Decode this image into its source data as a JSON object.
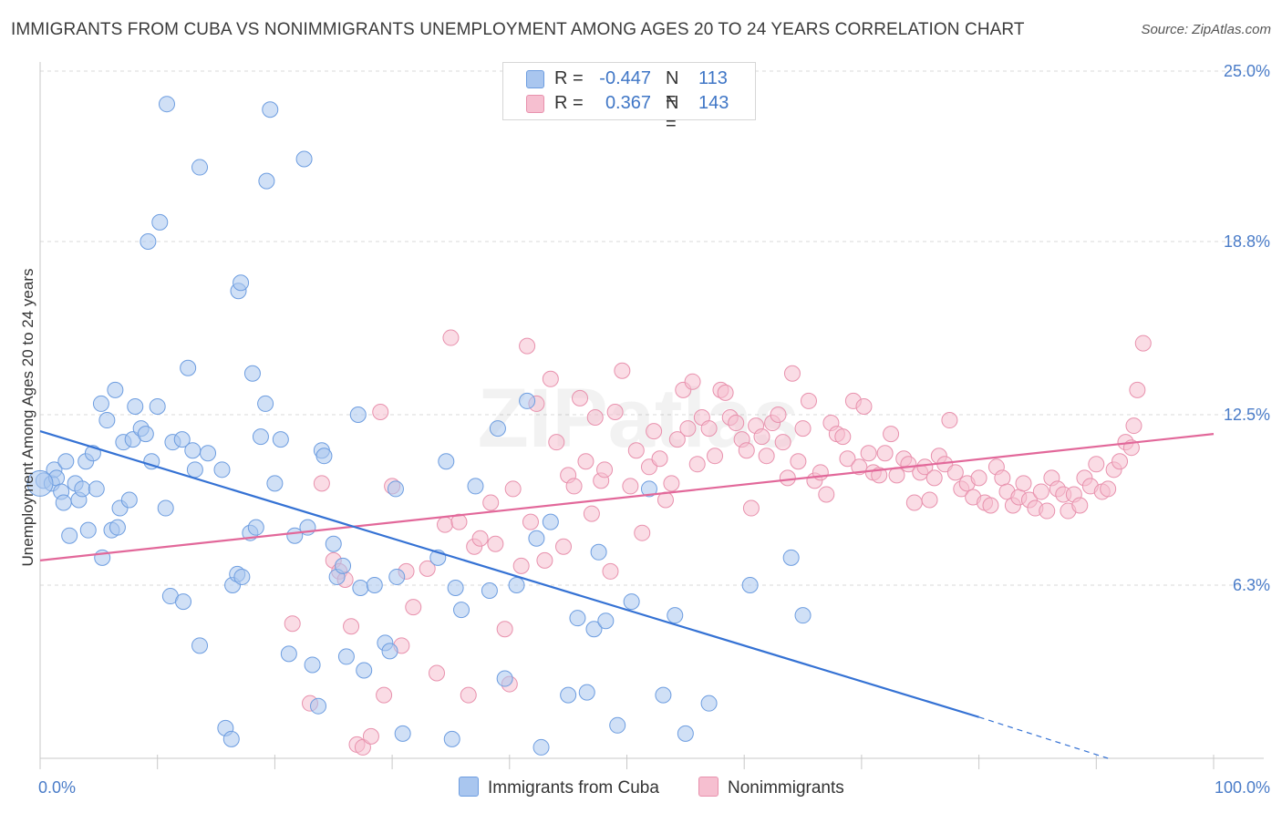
{
  "title": "IMMIGRANTS FROM CUBA VS NONIMMIGRANTS UNEMPLOYMENT AMONG AGES 20 TO 24 YEARS CORRELATION CHART",
  "source": "Source: ZipAtlas.com",
  "watermark": "ZIPatlas",
  "legend": {
    "r_label": "R =",
    "n_label": "N =",
    "series": [
      {
        "r": "-0.447",
        "n": "113"
      },
      {
        "r": "0.367",
        "n": "143"
      }
    ]
  },
  "colors": {
    "blue_fill": "#a9c6ef",
    "blue_stroke": "#6d9de0",
    "blue_line": "#3572d4",
    "pink_fill": "#f6bfd0",
    "pink_stroke": "#e891ad",
    "pink_line": "#e2689a",
    "tick_text": "#4a7cc8"
  },
  "chart_data": {
    "type": "scatter",
    "title": "IMMIGRANTS FROM CUBA VS NONIMMIGRANTS UNEMPLOYMENT AMONG AGES 20 TO 24 YEARS CORRELATION CHART",
    "xlabel": "",
    "ylabel": "Unemployment Among Ages 20 to 24 years",
    "xlim": [
      0,
      100
    ],
    "ylim": [
      0,
      25.0
    ],
    "x_tick_labels": [
      "0.0%",
      "100.0%"
    ],
    "y_ticks": [
      6.3,
      12.5,
      18.8,
      25.0
    ],
    "y_tick_labels": [
      "6.3%",
      "12.5%",
      "18.8%",
      "25.0%"
    ],
    "grid": "horizontal dashed",
    "legend_position": "top-center",
    "series": [
      {
        "name": "Immigrants from Cuba",
        "color": "#a9c6ef",
        "trend": {
          "x0": 0,
          "y0": 11.9,
          "x1": 80,
          "y1": 1.5,
          "dashed_to_x": 91,
          "dashed_to_y": 0.0
        },
        "points": [
          [
            0.3,
            10.1
          ],
          [
            1.0,
            10.0
          ],
          [
            1.2,
            10.5
          ],
          [
            1.4,
            10.2
          ],
          [
            1.8,
            9.7
          ],
          [
            2.0,
            9.3
          ],
          [
            2.2,
            10.8
          ],
          [
            2.5,
            8.1
          ],
          [
            3.0,
            10.0
          ],
          [
            3.3,
            9.4
          ],
          [
            3.6,
            9.8
          ],
          [
            3.9,
            10.8
          ],
          [
            4.1,
            8.3
          ],
          [
            4.5,
            11.1
          ],
          [
            4.8,
            9.8
          ],
          [
            5.2,
            12.9
          ],
          [
            5.3,
            7.3
          ],
          [
            5.7,
            12.3
          ],
          [
            6.1,
            8.3
          ],
          [
            6.4,
            13.4
          ],
          [
            6.6,
            8.4
          ],
          [
            6.8,
            9.1
          ],
          [
            7.1,
            11.5
          ],
          [
            7.6,
            9.4
          ],
          [
            7.9,
            11.6
          ],
          [
            8.1,
            12.8
          ],
          [
            8.6,
            12.0
          ],
          [
            9.0,
            11.8
          ],
          [
            9.2,
            18.8
          ],
          [
            9.5,
            10.8
          ],
          [
            10.0,
            12.8
          ],
          [
            10.2,
            19.5
          ],
          [
            10.7,
            9.1
          ],
          [
            10.8,
            23.8
          ],
          [
            11.1,
            5.9
          ],
          [
            11.3,
            11.5
          ],
          [
            12.1,
            11.6
          ],
          [
            12.2,
            5.7
          ],
          [
            12.6,
            14.2
          ],
          [
            13.0,
            11.2
          ],
          [
            13.2,
            10.5
          ],
          [
            13.6,
            21.5
          ],
          [
            13.6,
            4.1
          ],
          [
            14.3,
            11.1
          ],
          [
            15.5,
            10.5
          ],
          [
            15.8,
            1.1
          ],
          [
            16.3,
            0.7
          ],
          [
            16.4,
            6.3
          ],
          [
            16.8,
            6.7
          ],
          [
            16.9,
            17.0
          ],
          [
            17.1,
            17.3
          ],
          [
            17.2,
            6.6
          ],
          [
            17.9,
            8.2
          ],
          [
            18.1,
            14.0
          ],
          [
            18.4,
            8.4
          ],
          [
            18.8,
            11.7
          ],
          [
            19.2,
            12.9
          ],
          [
            19.3,
            21.0
          ],
          [
            19.6,
            23.6
          ],
          [
            20.0,
            10.0
          ],
          [
            20.5,
            11.6
          ],
          [
            21.2,
            3.8
          ],
          [
            21.7,
            8.1
          ],
          [
            22.5,
            21.8
          ],
          [
            22.8,
            8.4
          ],
          [
            23.2,
            3.4
          ],
          [
            23.7,
            1.9
          ],
          [
            24.0,
            11.2
          ],
          [
            24.2,
            11.0
          ],
          [
            25.0,
            7.8
          ],
          [
            25.3,
            6.6
          ],
          [
            25.8,
            7.0
          ],
          [
            26.1,
            3.7
          ],
          [
            27.1,
            12.5
          ],
          [
            27.3,
            6.2
          ],
          [
            27.6,
            3.2
          ],
          [
            28.5,
            6.3
          ],
          [
            29.4,
            4.2
          ],
          [
            29.8,
            3.9
          ],
          [
            30.3,
            9.8
          ],
          [
            30.4,
            6.6
          ],
          [
            30.9,
            0.9
          ],
          [
            33.9,
            7.3
          ],
          [
            34.6,
            10.8
          ],
          [
            35.1,
            0.7
          ],
          [
            35.4,
            6.2
          ],
          [
            35.9,
            5.4
          ],
          [
            37.1,
            9.9
          ],
          [
            38.3,
            6.1
          ],
          [
            39.0,
            12.0
          ],
          [
            39.6,
            2.9
          ],
          [
            40.6,
            6.3
          ],
          [
            41.5,
            13.0
          ],
          [
            42.3,
            8.0
          ],
          [
            42.7,
            0.4
          ],
          [
            43.5,
            8.6
          ],
          [
            45.0,
            2.3
          ],
          [
            45.8,
            5.1
          ],
          [
            46.6,
            2.4
          ],
          [
            47.2,
            4.7
          ],
          [
            47.6,
            7.5
          ],
          [
            48.2,
            5.0
          ],
          [
            49.2,
            1.2
          ],
          [
            50.4,
            5.7
          ],
          [
            51.9,
            9.8
          ],
          [
            53.1,
            2.3
          ],
          [
            54.1,
            5.2
          ],
          [
            55.0,
            0.9
          ],
          [
            57.0,
            2.0
          ],
          [
            60.5,
            6.3
          ],
          [
            64.0,
            7.3
          ],
          [
            65.0,
            5.2
          ],
          [
            0.0,
            10.0
          ]
        ]
      },
      {
        "name": "Nonimmigrants",
        "color": "#f6bfd0",
        "trend": {
          "x0": 0,
          "y0": 7.2,
          "x1": 100,
          "y1": 11.8
        },
        "points": [
          [
            21.5,
            4.9
          ],
          [
            23.0,
            2.0
          ],
          [
            24.0,
            10.0
          ],
          [
            25.0,
            7.2
          ],
          [
            25.5,
            6.8
          ],
          [
            26.0,
            6.5
          ],
          [
            26.5,
            4.8
          ],
          [
            27.0,
            0.5
          ],
          [
            27.5,
            0.4
          ],
          [
            28.2,
            0.8
          ],
          [
            29.0,
            12.6
          ],
          [
            29.3,
            2.3
          ],
          [
            30.0,
            9.9
          ],
          [
            30.8,
            4.1
          ],
          [
            31.2,
            6.8
          ],
          [
            31.8,
            5.5
          ],
          [
            33.0,
            6.9
          ],
          [
            33.8,
            3.1
          ],
          [
            34.5,
            8.5
          ],
          [
            35.0,
            15.3
          ],
          [
            35.7,
            8.6
          ],
          [
            36.5,
            2.3
          ],
          [
            37.0,
            7.7
          ],
          [
            37.5,
            8.0
          ],
          [
            38.4,
            9.3
          ],
          [
            38.8,
            7.8
          ],
          [
            39.6,
            4.7
          ],
          [
            40.0,
            2.7
          ],
          [
            40.3,
            9.8
          ],
          [
            41.0,
            7.0
          ],
          [
            41.5,
            15.0
          ],
          [
            41.8,
            8.6
          ],
          [
            42.3,
            12.9
          ],
          [
            43.0,
            7.2
          ],
          [
            43.5,
            13.8
          ],
          [
            44.0,
            11.5
          ],
          [
            44.6,
            7.7
          ],
          [
            45.0,
            10.3
          ],
          [
            45.5,
            9.9
          ],
          [
            46.0,
            13.1
          ],
          [
            46.5,
            10.8
          ],
          [
            47.0,
            8.9
          ],
          [
            47.3,
            12.4
          ],
          [
            47.8,
            10.1
          ],
          [
            48.1,
            10.5
          ],
          [
            48.6,
            6.8
          ],
          [
            49.0,
            12.6
          ],
          [
            49.6,
            14.1
          ],
          [
            50.3,
            9.9
          ],
          [
            50.8,
            11.2
          ],
          [
            51.3,
            8.2
          ],
          [
            51.9,
            10.6
          ],
          [
            52.3,
            11.9
          ],
          [
            52.8,
            10.9
          ],
          [
            53.3,
            9.4
          ],
          [
            53.8,
            10.0
          ],
          [
            54.3,
            11.6
          ],
          [
            54.8,
            13.4
          ],
          [
            55.2,
            12.0
          ],
          [
            55.6,
            13.7
          ],
          [
            56.0,
            10.7
          ],
          [
            56.4,
            12.4
          ],
          [
            57.0,
            12.0
          ],
          [
            57.5,
            11.0
          ],
          [
            58.0,
            13.4
          ],
          [
            58.4,
            13.3
          ],
          [
            58.8,
            12.4
          ],
          [
            59.3,
            12.2
          ],
          [
            59.8,
            11.6
          ],
          [
            60.2,
            11.2
          ],
          [
            60.6,
            9.1
          ],
          [
            61.0,
            12.1
          ],
          [
            61.5,
            11.7
          ],
          [
            61.9,
            11.0
          ],
          [
            62.4,
            12.2
          ],
          [
            62.9,
            12.5
          ],
          [
            63.3,
            11.5
          ],
          [
            63.7,
            10.2
          ],
          [
            64.1,
            14.0
          ],
          [
            64.6,
            10.8
          ],
          [
            65.0,
            12.0
          ],
          [
            65.5,
            13.0
          ],
          [
            66.0,
            10.1
          ],
          [
            66.5,
            10.4
          ],
          [
            67.0,
            9.6
          ],
          [
            67.4,
            12.2
          ],
          [
            67.9,
            11.8
          ],
          [
            68.4,
            11.7
          ],
          [
            68.8,
            10.9
          ],
          [
            69.3,
            13.0
          ],
          [
            69.8,
            10.6
          ],
          [
            70.2,
            12.8
          ],
          [
            70.6,
            11.1
          ],
          [
            71.0,
            10.4
          ],
          [
            71.5,
            10.3
          ],
          [
            72.0,
            11.1
          ],
          [
            72.5,
            11.8
          ],
          [
            73.0,
            10.3
          ],
          [
            73.6,
            10.9
          ],
          [
            74.0,
            10.7
          ],
          [
            74.5,
            9.3
          ],
          [
            75.0,
            10.4
          ],
          [
            75.4,
            10.6
          ],
          [
            75.8,
            9.4
          ],
          [
            76.2,
            10.2
          ],
          [
            76.6,
            11.0
          ],
          [
            77.1,
            10.7
          ],
          [
            77.5,
            12.3
          ],
          [
            78.0,
            10.4
          ],
          [
            78.5,
            9.8
          ],
          [
            79.0,
            10.0
          ],
          [
            79.5,
            9.5
          ],
          [
            80.0,
            10.2
          ],
          [
            80.5,
            9.3
          ],
          [
            81.0,
            9.2
          ],
          [
            81.5,
            10.6
          ],
          [
            82.0,
            10.2
          ],
          [
            82.4,
            9.7
          ],
          [
            82.9,
            9.2
          ],
          [
            83.4,
            9.5
          ],
          [
            83.8,
            10.0
          ],
          [
            84.3,
            9.4
          ],
          [
            84.8,
            9.1
          ],
          [
            85.3,
            9.7
          ],
          [
            85.8,
            9.0
          ],
          [
            86.2,
            10.2
          ],
          [
            86.7,
            9.8
          ],
          [
            87.2,
            9.6
          ],
          [
            87.6,
            9.0
          ],
          [
            88.1,
            9.6
          ],
          [
            88.6,
            9.2
          ],
          [
            89.0,
            10.2
          ],
          [
            89.5,
            9.9
          ],
          [
            90.0,
            10.7
          ],
          [
            90.5,
            9.7
          ],
          [
            91.0,
            9.8
          ],
          [
            91.5,
            10.5
          ],
          [
            92.0,
            10.8
          ],
          [
            92.5,
            11.5
          ],
          [
            93.0,
            11.3
          ],
          [
            93.5,
            13.4
          ],
          [
            94.0,
            15.1
          ],
          [
            93.2,
            12.1
          ]
        ]
      }
    ]
  },
  "bottom_legend": [
    "Immigrants from Cuba",
    "Nonimmigrants"
  ]
}
